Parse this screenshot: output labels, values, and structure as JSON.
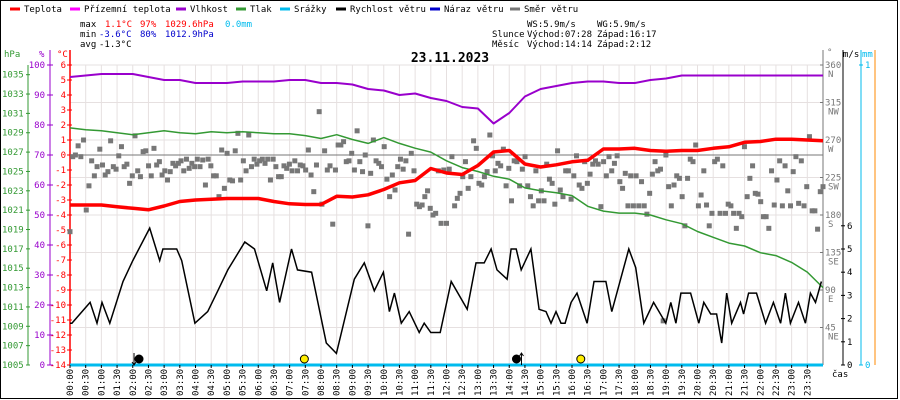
{
  "legend": [
    {
      "label": "Teplota",
      "color": "#ff0000"
    },
    {
      "label": "Přízemní teplota",
      "color": "#ff00ff"
    },
    {
      "label": "Vlhkost",
      "color": "#9900cc"
    },
    {
      "label": "Tlak",
      "color": "#339933"
    },
    {
      "label": "Srážky",
      "color": "#00bbee"
    },
    {
      "label": "Rychlost větru",
      "color": "#000000"
    },
    {
      "label": "Náraz větru",
      "color": "#0000cc"
    },
    {
      "label": "Směr větru",
      "color": "#777777"
    }
  ],
  "stats": {
    "max_label": "max",
    "max_temp": "1.1°C",
    "max_hum": "97%",
    "max_press": "1029.6hPa",
    "precip": "0.0mm",
    "min_label": "min",
    "min_temp": "-3.6°C",
    "min_hum": "80%",
    "min_press": "1012.9hPa",
    "avg_label": "avg",
    "avg_temp": "-1.3°C",
    "ws": "WS:5.9m/s",
    "wg": "WG:5.9m/s",
    "sun_label": "Slunce",
    "sun_rise": "Východ:07:28",
    "sun_set": "Západ:16:17",
    "moon_label": "Měsíc",
    "moon_rise": "Východ:14:14",
    "moon_set": "Západ:2:12"
  },
  "units": {
    "hpa": "hPa",
    "pct": "%",
    "degc": "°C",
    "deg": "°",
    "ms": "m/s",
    "mm": "mm",
    "time": "čas"
  },
  "colors": {
    "temp": "#ff0000",
    "hum": "#9900cc",
    "press": "#339933",
    "precip": "#00bbee",
    "wind": "#000000",
    "dir": "#777777",
    "marker_sun": "#ffee00",
    "marker_moon": "#000000"
  },
  "chart_data": {
    "type": "line",
    "title": "23.11.2023",
    "xlabel": "čas",
    "x_range_hours": [
      0,
      24
    ],
    "time_ticks": [
      "00:00",
      "00:30",
      "01:00",
      "01:30",
      "02:00",
      "02:30",
      "03:00",
      "03:30",
      "04:00",
      "04:30",
      "05:00",
      "05:30",
      "06:00",
      "06:30",
      "07:00",
      "07:30",
      "08:00",
      "08:30",
      "09:00",
      "09:30",
      "10:00",
      "10:30",
      "11:00",
      "11:30",
      "12:00",
      "12:30",
      "13:00",
      "13:30",
      "14:00",
      "14:30",
      "15:00",
      "15:30",
      "16:00",
      "16:30",
      "17:00",
      "17:30",
      "18:00",
      "18:30",
      "19:00",
      "19:30",
      "20:00",
      "20:30",
      "21:00",
      "21:30",
      "22:00",
      "22:30",
      "23:00",
      "23:30"
    ],
    "axes": {
      "pressure": {
        "unit": "hPa",
        "range": [
          1005,
          1036
        ],
        "ticks": [
          1005,
          1007,
          1009,
          1011,
          1013,
          1015,
          1017,
          1019,
          1021,
          1023,
          1025,
          1027,
          1029,
          1031,
          1033,
          1035
        ]
      },
      "humidity": {
        "unit": "%",
        "range": [
          0,
          100
        ],
        "ticks": [
          0,
          10,
          20,
          30,
          40,
          50,
          60,
          70,
          80,
          90,
          100
        ]
      },
      "temperature": {
        "unit": "°C",
        "range": [
          -14,
          6
        ],
        "ticks": [
          -14,
          -13,
          -12,
          -11,
          -10,
          -9,
          -8,
          -7,
          -6,
          -5,
          -4,
          -3,
          -2,
          -1,
          0,
          1,
          2,
          3,
          4,
          5,
          6
        ]
      },
      "direction": {
        "unit": "°",
        "range": [
          0,
          360
        ],
        "ticks": [
          {
            "v": 45,
            "l": "NE"
          },
          {
            "v": 90,
            "l": "E"
          },
          {
            "v": 135,
            "l": "SE"
          },
          {
            "v": 180,
            "l": "S"
          },
          {
            "v": 225,
            "l": "SW"
          },
          {
            "v": 270,
            "l": "W"
          },
          {
            "v": 315,
            "l": "NW"
          },
          {
            "v": 360,
            "l": "N"
          }
        ]
      },
      "wind": {
        "unit": "m/s",
        "range": [
          0,
          12.93
        ],
        "ticks": [
          0,
          1,
          2,
          3,
          4,
          5,
          6
        ]
      },
      "precip": {
        "unit": "mm",
        "range": [
          0,
          1
        ],
        "ticks": [
          0,
          1
        ]
      }
    },
    "series_half_hourly_from_0h": {
      "temperature": [
        -3.33,
        -3.33,
        -3.33,
        -3.45,
        -3.55,
        -3.65,
        -3.4,
        -3.1,
        -3.0,
        -2.95,
        -2.9,
        -2.9,
        -2.9,
        -3.1,
        -3.25,
        -3.3,
        -3.3,
        -2.75,
        -2.8,
        -2.65,
        -2.3,
        -1.85,
        -1.7,
        -0.9,
        -1.2,
        -1.3,
        -0.7,
        0.2,
        0.3,
        -0.6,
        -0.8,
        -0.65,
        -0.45,
        -0.35,
        0.4,
        0.4,
        0.45,
        0.3,
        0.25,
        0.3,
        0.3,
        0.45,
        0.55,
        0.85,
        0.9,
        1.05,
        1.05,
        1.0,
        0.95
      ],
      "humidity": [
        96,
        96.5,
        97,
        97,
        97,
        96,
        95,
        95,
        94,
        94,
        94,
        94.5,
        94.5,
        94.5,
        95,
        95,
        94,
        94,
        93.5,
        92,
        91.5,
        90,
        90.5,
        89,
        88,
        86,
        85.5,
        80.5,
        84,
        89.5,
        92,
        93,
        94,
        94.5,
        94.5,
        94,
        94,
        95,
        95.5,
        96.5,
        96.5,
        96.5,
        96.5,
        96.5,
        96.5,
        96.5,
        96.5,
        96.5,
        96.5
      ],
      "pressure": [
        1029.5,
        1029.3,
        1029.2,
        1029.0,
        1028.8,
        1029.0,
        1029.2,
        1029.0,
        1028.9,
        1029.1,
        1029.0,
        1029.1,
        1029.0,
        1028.9,
        1028.9,
        1028.7,
        1028.4,
        1028.8,
        1028.3,
        1027.9,
        1028.5,
        1027.9,
        1027.4,
        1027.0,
        1026.1,
        1025.4,
        1025.0,
        1024.5,
        1024.2,
        1023.3,
        1023.0,
        1022.8,
        1022.5,
        1021.4,
        1020.9,
        1020.7,
        1020.7,
        1020.5,
        1020.0,
        1019.6,
        1018.8,
        1018.2,
        1017.6,
        1017.3,
        1016.6,
        1016.3,
        1015.6,
        1014.6,
        1013.0
      ],
      "precipitation": [
        0,
        0,
        0,
        0,
        0,
        0,
        0,
        0,
        0,
        0,
        0,
        0,
        0,
        0,
        0,
        0,
        0,
        0,
        0,
        0,
        0,
        0,
        0,
        0,
        0,
        0,
        0,
        0,
        0,
        0,
        0,
        0,
        0,
        0,
        0,
        0,
        0,
        0,
        0,
        0,
        0,
        0,
        0,
        0,
        0,
        0,
        0,
        0,
        0
      ]
    },
    "wind_speed_points_hour_ms": [
      [
        0.0,
        1.8
      ],
      [
        0.06,
        1.8
      ],
      [
        0.64,
        2.7
      ],
      [
        0.86,
        1.8
      ],
      [
        1.02,
        2.7
      ],
      [
        1.27,
        1.8
      ],
      [
        1.69,
        3.6
      ],
      [
        2.0,
        4.5
      ],
      [
        2.54,
        5.9
      ],
      [
        2.86,
        4.5
      ],
      [
        2.96,
        5.0
      ],
      [
        3.4,
        5.0
      ],
      [
        3.56,
        4.5
      ],
      [
        3.98,
        1.8
      ],
      [
        4.39,
        2.3
      ],
      [
        4.71,
        3.2
      ],
      [
        5.03,
        4.1
      ],
      [
        5.57,
        5.3
      ],
      [
        5.88,
        5.0
      ],
      [
        6.27,
        3.2
      ],
      [
        6.46,
        4.4
      ],
      [
        6.68,
        2.7
      ],
      [
        7.06,
        5.0
      ],
      [
        7.25,
        4.1
      ],
      [
        7.7,
        4.0
      ],
      [
        8.17,
        0.95
      ],
      [
        8.49,
        0.5
      ],
      [
        9.06,
        3.7
      ],
      [
        9.38,
        4.4
      ],
      [
        9.7,
        3.2
      ],
      [
        9.99,
        4.0
      ],
      [
        10.18,
        2.3
      ],
      [
        10.34,
        3.1
      ],
      [
        10.56,
        1.8
      ],
      [
        10.81,
        2.3
      ],
      [
        11.13,
        1.4
      ],
      [
        11.29,
        1.8
      ],
      [
        11.5,
        1.4
      ],
      [
        11.8,
        1.4
      ],
      [
        12.15,
        3.6
      ],
      [
        12.66,
        2.4
      ],
      [
        12.94,
        4.4
      ],
      [
        13.2,
        4.4
      ],
      [
        13.42,
        5.0
      ],
      [
        13.61,
        4.1
      ],
      [
        13.93,
        3.7
      ],
      [
        14.06,
        5.0
      ],
      [
        14.22,
        5.0
      ],
      [
        14.38,
        4.1
      ],
      [
        14.69,
        5.0
      ],
      [
        14.95,
        2.4
      ],
      [
        15.17,
        2.3
      ],
      [
        15.33,
        1.8
      ],
      [
        15.49,
        2.3
      ],
      [
        15.65,
        1.8
      ],
      [
        15.78,
        1.8
      ],
      [
        15.97,
        2.7
      ],
      [
        16.16,
        3.1
      ],
      [
        16.48,
        1.8
      ],
      [
        16.7,
        3.6
      ],
      [
        17.08,
        3.6
      ],
      [
        17.27,
        2.3
      ],
      [
        17.81,
        5.0
      ],
      [
        18.03,
        4.2
      ],
      [
        18.29,
        1.8
      ],
      [
        18.6,
        2.7
      ],
      [
        18.99,
        1.8
      ],
      [
        19.15,
        2.7
      ],
      [
        19.31,
        1.8
      ],
      [
        19.47,
        3.1
      ],
      [
        19.78,
        3.1
      ],
      [
        20.04,
        1.8
      ],
      [
        20.2,
        2.7
      ],
      [
        20.42,
        2.2
      ],
      [
        20.61,
        2.2
      ],
      [
        20.77,
        0.95
      ],
      [
        20.93,
        3.1
      ],
      [
        21.09,
        1.8
      ],
      [
        21.37,
        2.7
      ],
      [
        21.47,
        2.2
      ],
      [
        21.63,
        3.1
      ],
      [
        21.88,
        3.1
      ],
      [
        22.17,
        1.8
      ],
      [
        22.42,
        2.7
      ],
      [
        22.65,
        1.8
      ],
      [
        22.8,
        3.1
      ],
      [
        22.96,
        1.8
      ],
      [
        23.22,
        2.7
      ],
      [
        23.44,
        1.8
      ],
      [
        23.6,
        3.1
      ],
      [
        23.76,
        2.7
      ],
      [
        23.95,
        3.6
      ]
    ],
    "wind_direction_deg_evenly_spaced_0_24h": [
      160,
      250,
      252,
      263,
      250,
      270,
      186,
      215,
      245,
      227,
      238,
      259,
      240,
      228,
      232,
      269,
      238,
      235,
      251,
      262,
      238,
      241,
      218,
      227,
      275,
      233,
      226,
      256,
      257,
      239,
      227,
      260,
      240,
      244,
      228,
      233,
      222,
      232,
      242,
      239,
      242,
      245,
      233,
      247,
      236,
      242,
      238,
      247,
      238,
      246,
      216,
      247,
      239,
      227,
      227,
      202,
      258,
      212,
      254,
      222,
      221,
      257,
      278,
      222,
      245,
      233,
      276,
      238,
      247,
      241,
      245,
      247,
      242,
      247,
      222,
      247,
      238,
      226,
      226,
      239,
      236,
      241,
      233,
      245,
      233,
      240,
      239,
      234,
      258,
      228,
      208,
      240,
      304,
      193,
      257,
      234,
      239,
      169,
      234,
      264,
      264,
      268,
      244,
      245,
      254,
      234,
      281,
      244,
      232,
      252,
      167,
      230,
      270,
      245,
      242,
      238,
      262,
      223,
      202,
      228,
      210,
      238,
      247,
      235,
      245,
      157,
      254,
      233,
      193,
      190,
      192,
      202,
      209,
      188,
      180,
      182,
      233,
      170,
      234,
      170,
      235,
      250,
      191,
      200,
      206,
      226,
      244,
      212,
      226,
      269,
      260,
      218,
      216,
      226,
      232,
      276,
      251,
      233,
      242,
      239,
      259,
      215,
      236,
      197,
      245,
      244,
      215,
      235,
      250,
      215,
      202,
      191,
      233,
      197,
      209,
      197,
      241,
      223,
      218,
      193,
      257,
      210,
      202,
      233,
      233,
      199,
      227,
      251,
      216,
      212,
      244,
      218,
      229,
      241,
      245,
      241,
      190,
      244,
      227,
      250,
      233,
      242,
      251,
      220,
      212,
      230,
      191,
      227,
      191,
      227,
      191,
      220,
      191,
      181,
      206,
      229,
      244,
      233,
      235,
      53,
      252,
      214,
      191,
      216,
      227,
      224,
      202,
      167,
      224,
      247,
      244,
      264,
      191,
      204,
      233,
      192,
      167,
      182,
      244,
      247,
      182,
      239,
      182,
      193,
      191,
      182,
      164,
      182,
      178,
      262,
      202,
      224,
      239,
      206,
      205,
      196,
      178,
      178,
      164,
      233,
      192,
      222,
      245,
      191,
      239,
      209,
      191,
      232,
      250,
      194,
      245,
      191,
      214,
      274,
      185,
      185,
      163,
      208,
      214
    ],
    "events": [
      {
        "type": "moon_set",
        "time_h": 2.2,
        "arrow": "down"
      },
      {
        "type": "sun_rise",
        "time_h": 7.47
      },
      {
        "type": "moon_rise",
        "time_h": 14.23,
        "arrow": "up"
      },
      {
        "type": "sun_set",
        "time_h": 16.28
      }
    ]
  }
}
